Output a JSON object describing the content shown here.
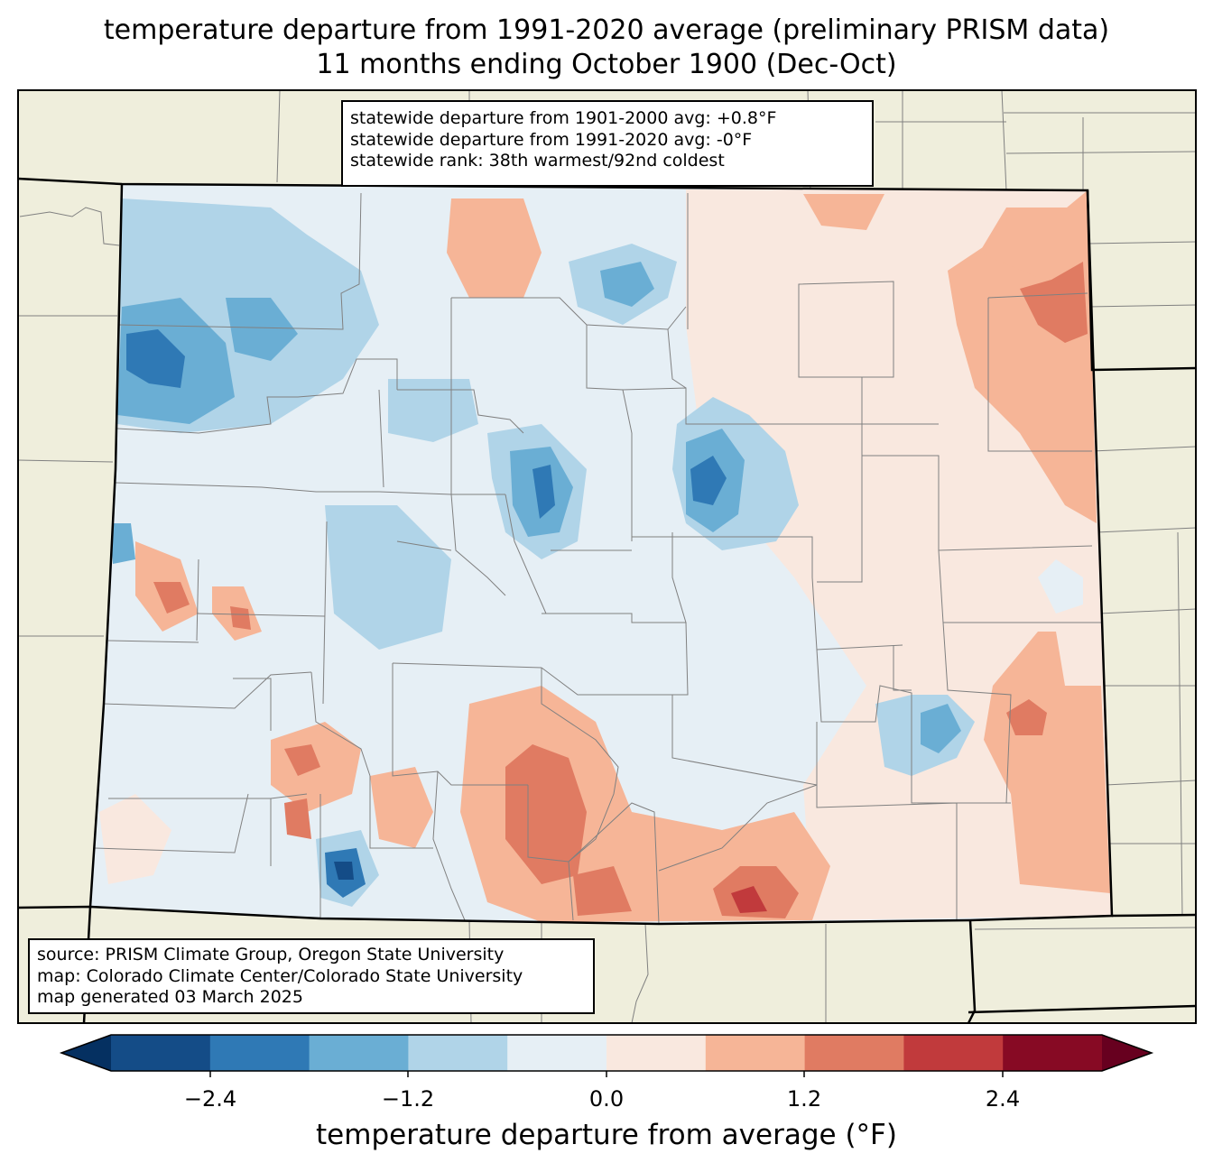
{
  "title": {
    "line1": "temperature departure from 1991-2020 average (preliminary PRISM data)",
    "line2": "11 months ending October 1900 (Dec-Oct)"
  },
  "stats": {
    "line1": "statewide departure from 1901-2000 avg: +0.8°F",
    "line2": "statewide departure from 1991-2020 avg: -0°F",
    "line3": "statewide rank: 38th warmest/92nd coldest"
  },
  "source": {
    "line1": "source: PRISM Climate Group, Oregon State University",
    "line2": "map: Colorado Climate Center/Colorado State University",
    "line3": "map generated 03 March 2025"
  },
  "colorbar": {
    "label": "temperature departure from average (°F)",
    "ticks": [
      "−2.4",
      "−1.2",
      "0.0",
      "1.2",
      "2.4"
    ],
    "bounds": [
      -3.0,
      3.0
    ],
    "step": 0.6,
    "colors": [
      "#053061",
      "#144c87",
      "#2f79b5",
      "#6aaed4",
      "#b0d4e8",
      "#e6eff5",
      "#f9e8df",
      "#f6b597",
      "#e07b62",
      "#c13a3c",
      "#870a24",
      "#67001f"
    ]
  },
  "colors": {
    "land": "#efeedc",
    "state_border": "#000000",
    "county_border": "#808080"
  }
}
